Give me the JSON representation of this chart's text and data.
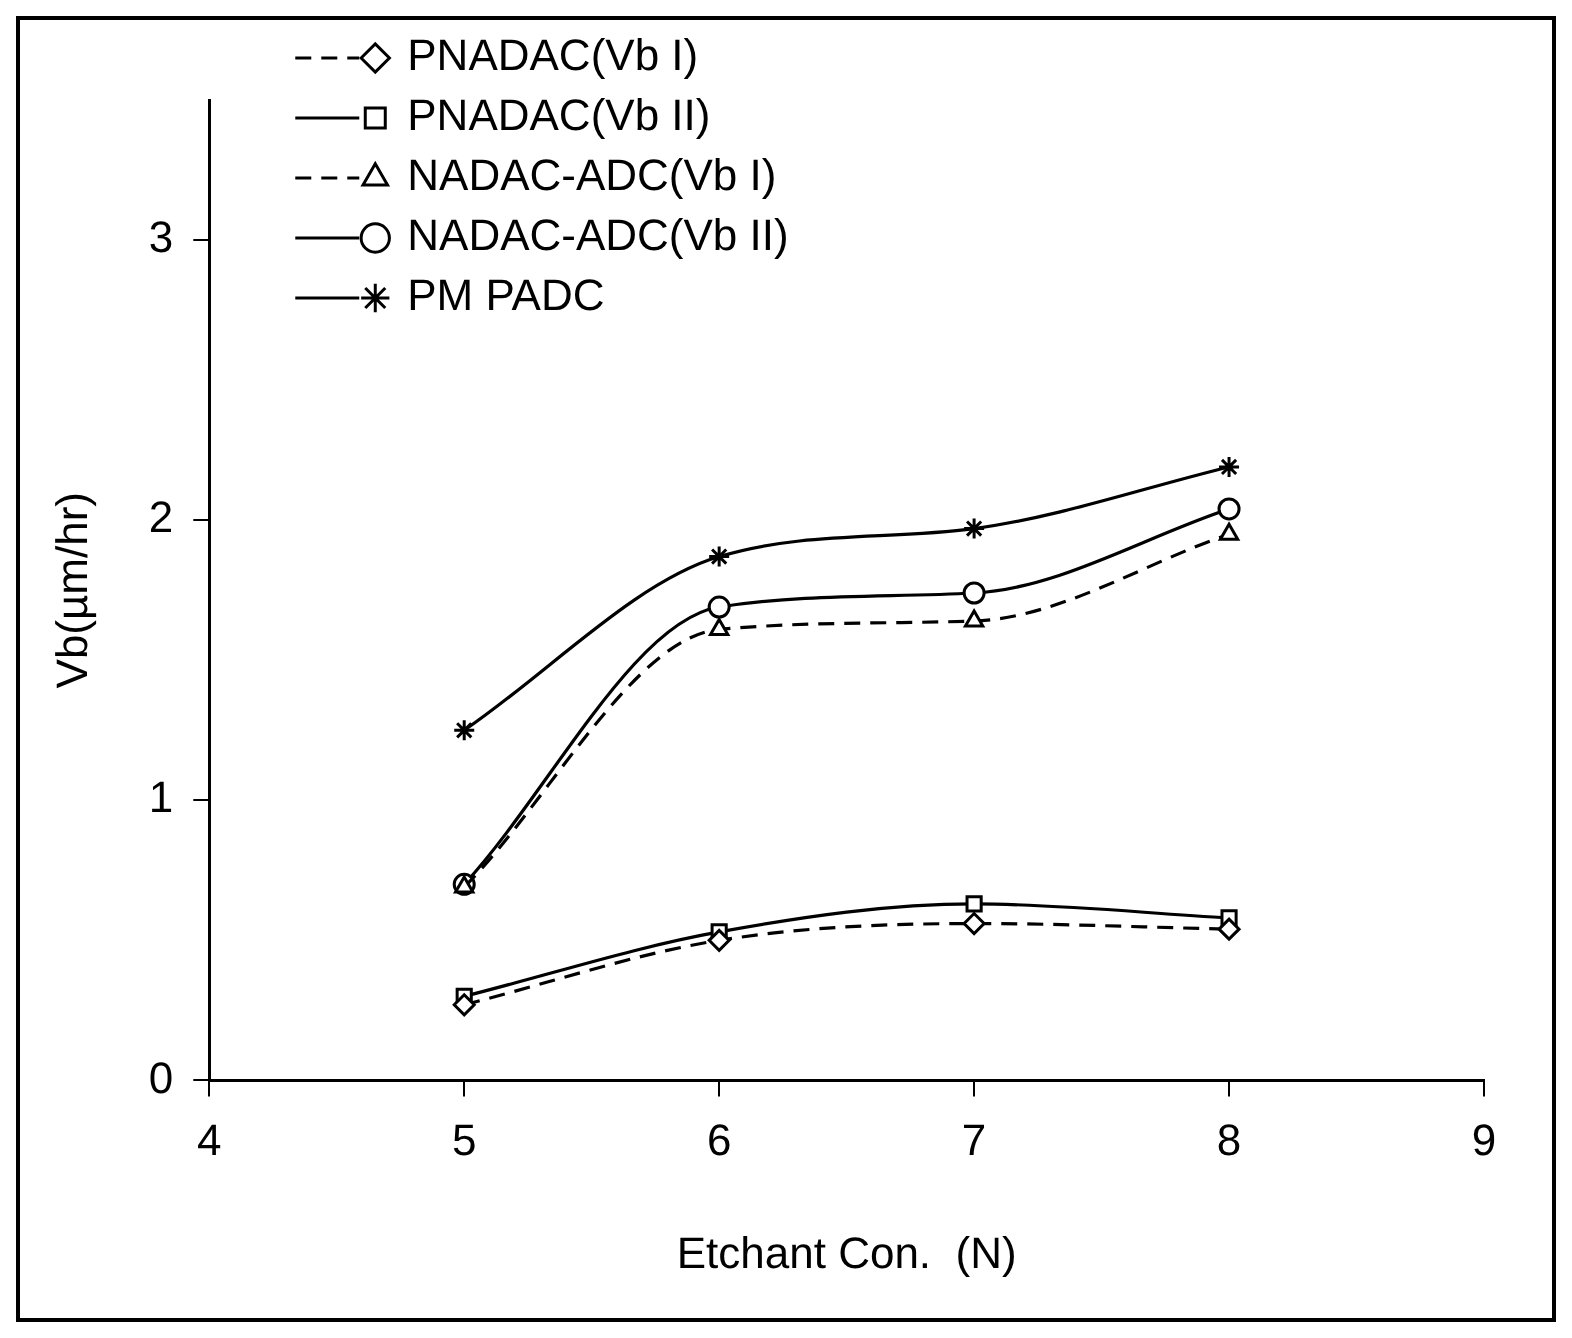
{
  "chart_data": {
    "type": "line",
    "xlabel": "Etchant Con.  (N)",
    "ylabel": "Vb(µm/hr)",
    "x": [
      5,
      6,
      7,
      8
    ],
    "xlim": [
      4,
      9
    ],
    "xticks": [
      4,
      5,
      6,
      7,
      8,
      9
    ],
    "ylim": [
      0,
      3.5
    ],
    "yticks": [
      0,
      1,
      2,
      3
    ],
    "grid": false,
    "legend": "top left",
    "series": [
      {
        "name": "PNADAC(Vb I)",
        "color": "#000000",
        "marker": "diamond",
        "line_style": "dashed",
        "values": [
          0.27,
          0.5,
          0.56,
          0.54
        ]
      },
      {
        "name": "PNADAC(Vb II)",
        "color": "#000000",
        "marker": "square",
        "line_style": "solid",
        "values": [
          0.3,
          0.53,
          0.63,
          0.58
        ]
      },
      {
        "name": "NADAC-ADC(Vb I)",
        "color": "#000000",
        "marker": "triangle",
        "line_style": "dashed",
        "values": [
          0.69,
          1.61,
          1.64,
          1.95
        ]
      },
      {
        "name": "NADAC-ADC(Vb II)",
        "color": "#000000",
        "marker": "circle",
        "line_style": "solid",
        "values": [
          0.7,
          1.69,
          1.74,
          2.04
        ]
      },
      {
        "name": "PM PADC",
        "color": "#000000",
        "marker": "cross",
        "line_style": "solid",
        "values": [
          1.25,
          1.87,
          1.97,
          2.19
        ]
      }
    ]
  }
}
